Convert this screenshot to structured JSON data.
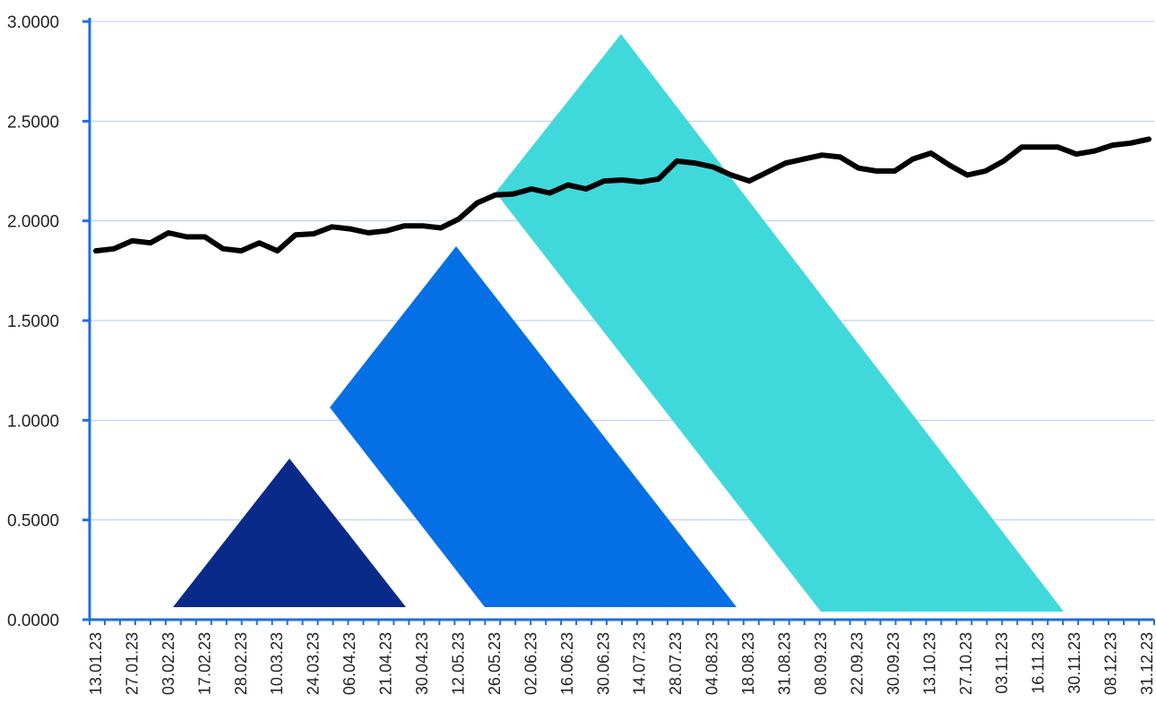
{
  "chart_data": {
    "type": "line",
    "title": "",
    "xlabel": "",
    "ylabel": "",
    "ylim": [
      0,
      3
    ],
    "y_ticks": [
      "0.0000",
      "0.5000",
      "1.0000",
      "1.5000",
      "2.0000",
      "2.5000",
      "3.0000"
    ],
    "y_tick_values": [
      0,
      0.5,
      1.0,
      1.5,
      2.0,
      2.5,
      3.0
    ],
    "grid": "horizontal",
    "x_tick_labels": [
      "13.01.23",
      "27.01.23",
      "03.02.23",
      "17.02.23",
      "28.02.23",
      "10.03.23",
      "24.03.23",
      "06.04.23",
      "21.04.23",
      "30.04.23",
      "12.05.23",
      "26.05.23",
      "02.06.23",
      "16.06.23",
      "30.06.23",
      "14.07.23",
      "28.07.23",
      "04.08.23",
      "18.08.23",
      "31.08.23",
      "08.09.23",
      "22.09.23",
      "30.09.23",
      "13.10.23",
      "27.10.23",
      "03.11.23",
      "16.11.23",
      "30.11.23",
      "08.12.23",
      "31.12.23"
    ],
    "series": [
      {
        "color": "#000000",
        "values": [
          1.85,
          1.86,
          1.9,
          1.89,
          1.94,
          1.92,
          1.92,
          1.86,
          1.85,
          1.89,
          1.85,
          1.93,
          1.935,
          1.97,
          1.96,
          1.94,
          1.95,
          1.975,
          1.975,
          1.965,
          2.01,
          2.09,
          2.13,
          2.135,
          2.16,
          2.14,
          2.18,
          2.16,
          2.2,
          2.205,
          2.195,
          2.21,
          2.3,
          2.29,
          2.27,
          2.23,
          2.2,
          2.245,
          2.29,
          2.31,
          2.33,
          2.32,
          2.265,
          2.25,
          2.25,
          2.31,
          2.34,
          2.28,
          2.23,
          2.25,
          2.3,
          2.37,
          2.37,
          2.37,
          2.335,
          2.35,
          2.38,
          2.39,
          2.41
        ]
      }
    ],
    "decoration_colors": [
      "#0a2a8a",
      "#0570e6",
      "#40d9db"
    ],
    "axis_color": "#1c6fe0",
    "grid_color": "#b8c8ee"
  }
}
